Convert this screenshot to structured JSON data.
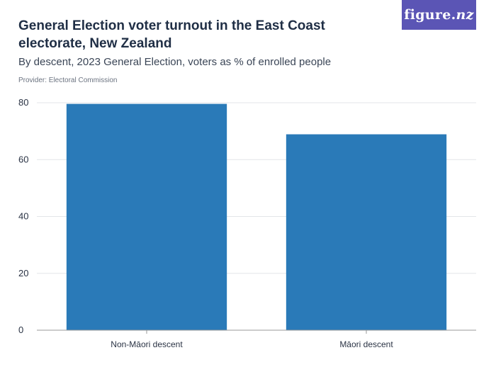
{
  "header": {
    "title": "General Election voter turnout in the East Coast electorate, New Zealand",
    "subtitle": "By descent, 2023 General Election, voters as % of enrolled people",
    "provider": "Provider: Electoral Commission"
  },
  "logo": {
    "main": "figure.",
    "accent": "nz",
    "background": "#5b55b5"
  },
  "chart_data": {
    "type": "bar",
    "title": "General Election voter turnout in the East Coast electorate, New Zealand",
    "subtitle": "By descent, 2023 General Election, voters as % of enrolled people",
    "categories": [
      "Non-Māori descent",
      "Māori descent"
    ],
    "values": [
      79.6,
      68.9
    ],
    "xlabel": "",
    "ylabel": "",
    "ylim": [
      0,
      80
    ],
    "yticks": [
      0,
      20,
      40,
      60,
      80
    ],
    "grid": true,
    "bar_color": "#2a7ab8",
    "grid_color": "#e3e5e8",
    "axis_color": "#999999"
  }
}
